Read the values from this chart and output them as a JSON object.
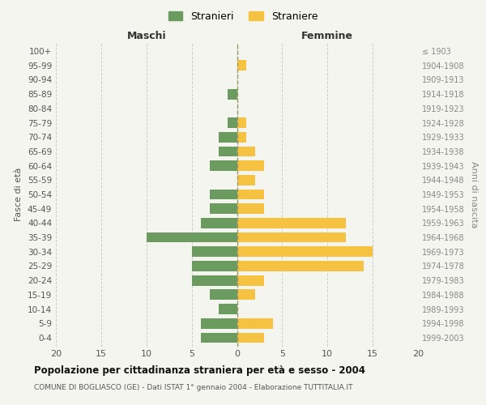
{
  "age_groups": [
    "0-4",
    "5-9",
    "10-14",
    "15-19",
    "20-24",
    "25-29",
    "30-34",
    "35-39",
    "40-44",
    "45-49",
    "50-54",
    "55-59",
    "60-64",
    "65-69",
    "70-74",
    "75-79",
    "80-84",
    "85-89",
    "90-94",
    "95-99",
    "100+"
  ],
  "birth_years": [
    "1999-2003",
    "1994-1998",
    "1989-1993",
    "1984-1988",
    "1979-1983",
    "1974-1978",
    "1969-1973",
    "1964-1968",
    "1959-1963",
    "1954-1958",
    "1949-1953",
    "1944-1948",
    "1939-1943",
    "1934-1938",
    "1929-1933",
    "1924-1928",
    "1919-1923",
    "1914-1918",
    "1909-1913",
    "1904-1908",
    "≤ 1903"
  ],
  "maschi": [
    4,
    4,
    2,
    3,
    5,
    5,
    5,
    10,
    4,
    3,
    3,
    0,
    3,
    2,
    2,
    1,
    0,
    1,
    0,
    0,
    0
  ],
  "femmine": [
    3,
    4,
    0,
    2,
    3,
    14,
    15,
    12,
    12,
    3,
    3,
    2,
    3,
    2,
    1,
    1,
    0,
    0,
    0,
    1,
    0
  ],
  "color_maschi": "#6b9b5e",
  "color_femmine": "#f5c242",
  "title": "Popolazione per cittadinanza straniera per età e sesso - 2004",
  "subtitle": "COMUNE DI BOGLIASCO (GE) - Dati ISTAT 1° gennaio 2004 - Elaborazione TUTTITALIA.IT",
  "ylabel_left": "Fasce di età",
  "ylabel_right": "Anni di nascita",
  "label_maschi": "Maschi",
  "label_femmine": "Femmine",
  "legend_stranieri": "Stranieri",
  "legend_straniere": "Straniere",
  "xlim": 20,
  "bg_color": "#f5f5f0",
  "grid_color": "#cccccc"
}
